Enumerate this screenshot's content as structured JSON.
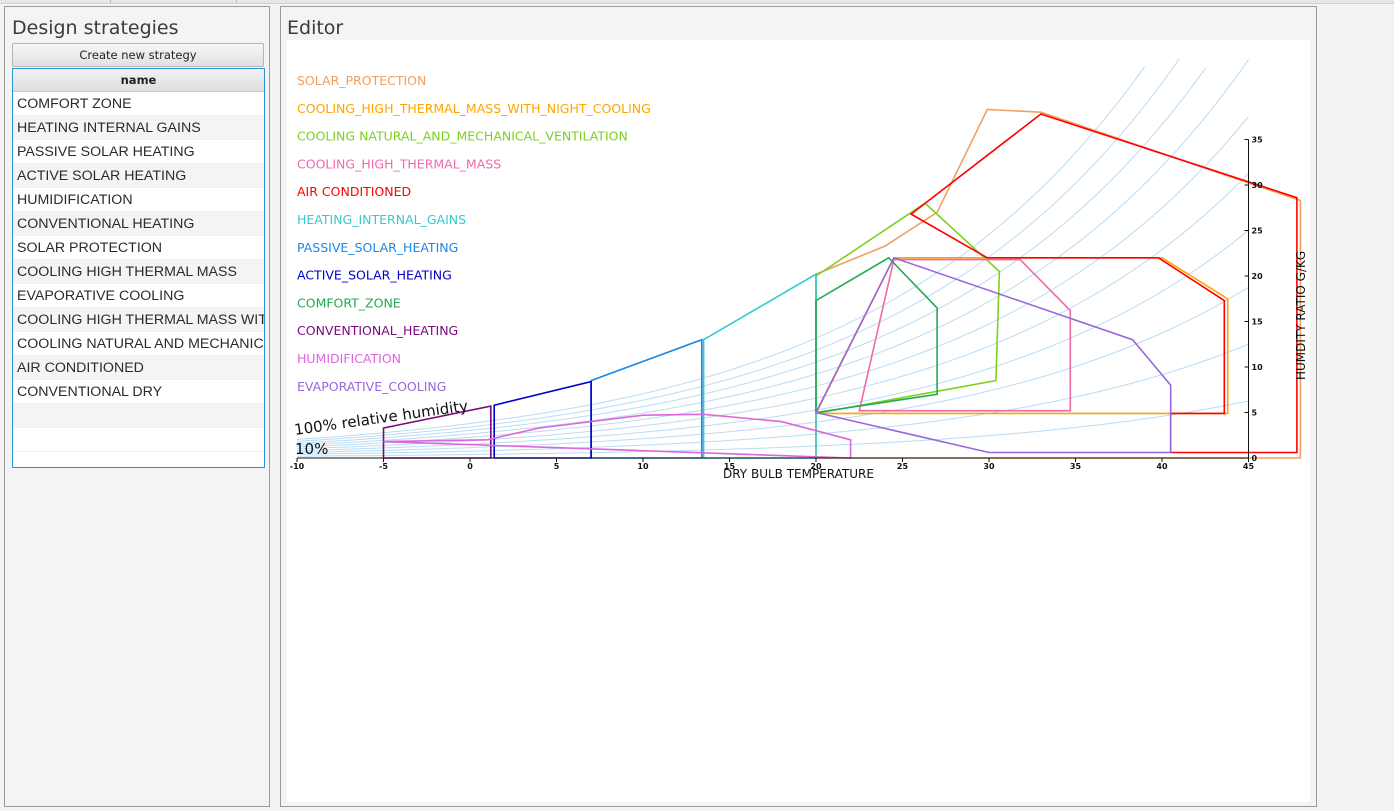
{
  "left_panel": {
    "title": "Design strategies",
    "create_button": "Create new strategy",
    "table_header": "name",
    "strategies": [
      "COMFORT ZONE",
      "HEATING INTERNAL GAINS",
      "PASSIVE SOLAR HEATING",
      "ACTIVE SOLAR HEATING",
      "HUMIDIFICATION",
      "CONVENTIONAL HEATING",
      "SOLAR PROTECTION",
      "COOLING HIGH THERMAL MASS",
      "EVAPORATIVE COOLING",
      "COOLING HIGH THERMAL MASS WITH",
      "COOLING NATURAL AND MECHANICA",
      "AIR CONDITIONED",
      "CONVENTIONAL DRY"
    ]
  },
  "editor": {
    "title": "Editor",
    "legend": [
      {
        "label": "SOLAR_PROTECTION",
        "color": "#f0a060"
      },
      {
        "label": "COOLING_HIGH_THERMAL_MASS_WITH_NIGHT_COOLING",
        "color": "#ffa500"
      },
      {
        "label": "COOLING NATURAL_AND_MECHANICAL_VENTILATION",
        "color": "#7cd11f"
      },
      {
        "label": "COOLING_HIGH_THERMAL_MASS",
        "color": "#f06aa8"
      },
      {
        "label": "AIR CONDITIONED",
        "color": "#ff0000"
      },
      {
        "label": "HEATING_INTERNAL_GAINS",
        "color": "#33cccc"
      },
      {
        "label": "PASSIVE_SOLAR_HEATING",
        "color": "#1e88e5"
      },
      {
        "label": "ACTIVE_SOLAR_HEATING",
        "color": "#0000cc"
      },
      {
        "label": "COMFORT_ZONE",
        "color": "#22aa55"
      },
      {
        "label": "CONVENTIONAL_HEATING",
        "color": "#7a0a7a"
      },
      {
        "label": "HUMIDIFICATION",
        "color": "#dd66dd"
      },
      {
        "label": "EVAPORATIVE_COOLING",
        "color": "#9966dd"
      }
    ],
    "rh_label_100": "100% relative humidity",
    "rh_label_10": "10%",
    "x_axis_label": "DRY BULB TEMPERATURE",
    "y_axis_label": "HUMDITY RATIO G/KG",
    "x_ticks": [
      "-10",
      "-5",
      "0",
      "5",
      "10",
      "15",
      "20",
      "25",
      "30",
      "35",
      "40",
      "45"
    ],
    "y_ticks": [
      "0",
      "5",
      "10",
      "15",
      "20",
      "25",
      "30",
      "35"
    ],
    "curve_color": "#b9dcf5"
  },
  "chart_data": {
    "type": "line",
    "title": "",
    "xlabel": "DRY BULB TEMPERATURE",
    "ylabel": "HUMDITY RATIO G/KG",
    "xlim": [
      -10,
      45
    ],
    "ylim": [
      0,
      35
    ],
    "rh_curves": [
      10,
      20,
      30,
      40,
      50,
      60,
      70,
      80,
      90,
      100
    ],
    "zones": [
      {
        "name": "SOLAR_PROTECTION",
        "color": "#f0a060",
        "points": [
          [
            20,
            0
          ],
          [
            20,
            20.2
          ],
          [
            24,
            23.3
          ],
          [
            27,
            27
          ],
          [
            29.9,
            38.3
          ],
          [
            33,
            38
          ],
          [
            48,
            28.3
          ],
          [
            48,
            0
          ]
        ]
      },
      {
        "name": "COOLING_HIGH_THERMAL_MASS_WITH_NIGHT_COOLING",
        "color": "#ffa500",
        "points": [
          [
            20,
            4.9
          ],
          [
            24.5,
            22
          ],
          [
            40,
            22
          ],
          [
            43.8,
            17.5
          ],
          [
            43.8,
            4.9
          ]
        ]
      },
      {
        "name": "COOLING NATURAL_AND_MECHANICAL_VENTILATION",
        "color": "#7cd11f",
        "points": [
          [
            20,
            17.5
          ],
          [
            20,
            20
          ],
          [
            26.3,
            28
          ],
          [
            30.6,
            20.5
          ],
          [
            30.4,
            8.5
          ],
          [
            20,
            4.9
          ]
        ]
      },
      {
        "name": "COOLING_HIGH_THERMAL_MASS",
        "color": "#f06aa8",
        "points": [
          [
            22.5,
            5.2
          ],
          [
            34.7,
            5.2
          ],
          [
            34.7,
            16.2
          ],
          [
            31.8,
            21.8
          ],
          [
            24.5,
            21.8
          ]
        ]
      },
      {
        "name": "AIR CONDITIONED",
        "color": "#ff0000",
        "points": [
          [
            40.5,
            0.6
          ],
          [
            47.8,
            0.6
          ],
          [
            47.8,
            28.6
          ],
          [
            33,
            37.8
          ],
          [
            25.5,
            26.8
          ],
          [
            29.9,
            22
          ],
          [
            39.8,
            22
          ],
          [
            43.6,
            17.3
          ],
          [
            43.6,
            4.9
          ],
          [
            40.5,
            4.9
          ]
        ]
      },
      {
        "name": "HEATING_INTERNAL_GAINS",
        "color": "#33cccc",
        "points": [
          [
            13.5,
            0
          ],
          [
            13.5,
            13
          ],
          [
            20,
            20.2
          ],
          [
            20,
            0
          ]
        ]
      },
      {
        "name": "PASSIVE_SOLAR_HEATING",
        "color": "#1e88e5",
        "points": [
          [
            7,
            0
          ],
          [
            7,
            8.5
          ],
          [
            13.4,
            13
          ],
          [
            13.4,
            0
          ]
        ]
      },
      {
        "name": "ACTIVE_SOLAR_HEATING",
        "color": "#0000cc",
        "points": [
          [
            1.4,
            0
          ],
          [
            1.4,
            5.8
          ],
          [
            7,
            8.4
          ],
          [
            7,
            0
          ]
        ]
      },
      {
        "name": "COMFORT_ZONE",
        "color": "#22aa55",
        "points": [
          [
            20,
            5
          ],
          [
            27,
            7
          ],
          [
            27,
            16.5
          ],
          [
            24.2,
            22
          ],
          [
            20,
            17.3
          ]
        ]
      },
      {
        "name": "CONVENTIONAL_HEATING",
        "color": "#7a0a7a",
        "points": [
          [
            -5,
            0
          ],
          [
            -5,
            3.3
          ],
          [
            1.2,
            5.7
          ],
          [
            1.2,
            0
          ]
        ]
      },
      {
        "name": "HUMIDIFICATION",
        "color": "#dd66dd",
        "points": [
          [
            -5,
            1.8
          ],
          [
            1,
            2
          ],
          [
            4,
            3.3
          ],
          [
            10,
            4.7
          ],
          [
            13.5,
            4.8
          ],
          [
            18,
            4
          ],
          [
            20,
            3
          ],
          [
            22,
            2
          ],
          [
            22,
            0
          ]
        ]
      },
      {
        "name": "EVAPORATIVE_COOLING",
        "color": "#9966dd",
        "points": [
          [
            20,
            5
          ],
          [
            24.5,
            22
          ],
          [
            38.3,
            13
          ],
          [
            40.5,
            8
          ],
          [
            40.5,
            0.6
          ],
          [
            30,
            0.6
          ]
        ]
      }
    ]
  }
}
